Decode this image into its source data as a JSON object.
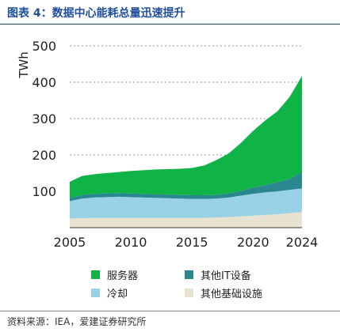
{
  "header": {
    "title": "图表 4：数据中心能耗总量迅速提升"
  },
  "footer": {
    "source": "资料来源：IEA，爱建证券研究所"
  },
  "chart_data": {
    "type": "area",
    "stacked": true,
    "ylabel": "TWh",
    "xlabel": "",
    "x_ticks": [
      "2005",
      "2010",
      "2015",
      "2020",
      "2024"
    ],
    "y_ticks": [
      "100",
      "200",
      "300",
      "400",
      "500"
    ],
    "xlim": [
      2005,
      2024
    ],
    "ylim": [
      0,
      500
    ],
    "grid": "horizontal-dotted",
    "legend_position": "bottom",
    "x": [
      2005,
      2006,
      2007,
      2008,
      2009,
      2010,
      2011,
      2012,
      2013,
      2014,
      2015,
      2016,
      2017,
      2018,
      2019,
      2020,
      2021,
      2022,
      2023,
      2024
    ],
    "series": [
      {
        "name": "其他基础设施",
        "color": "#e8e2d0",
        "values": [
          25,
          26,
          27,
          27,
          27,
          27,
          27,
          27,
          27,
          27,
          27,
          27,
          28,
          29,
          31,
          33,
          35,
          37,
          40,
          43
        ]
      },
      {
        "name": "冷却",
        "color": "#98d2e4",
        "values": [
          48,
          54,
          56,
          57,
          58,
          57,
          56,
          55,
          54,
          53,
          52,
          52,
          52,
          54,
          57,
          60,
          62,
          63,
          64,
          65
        ]
      },
      {
        "name": "其他IT设备",
        "color": "#2a8790",
        "values": [
          8,
          10,
          10,
          10,
          10,
          10,
          10,
          10,
          10,
          10,
          10,
          10,
          10,
          11,
          13,
          17,
          20,
          25,
          30,
          45
        ]
      },
      {
        "name": "服务器",
        "color": "#10b346",
        "values": [
          45,
          52,
          54,
          56,
          58,
          62,
          65,
          68,
          70,
          72,
          75,
          82,
          96,
          110,
          132,
          156,
          178,
          195,
          226,
          264
        ]
      }
    ]
  }
}
